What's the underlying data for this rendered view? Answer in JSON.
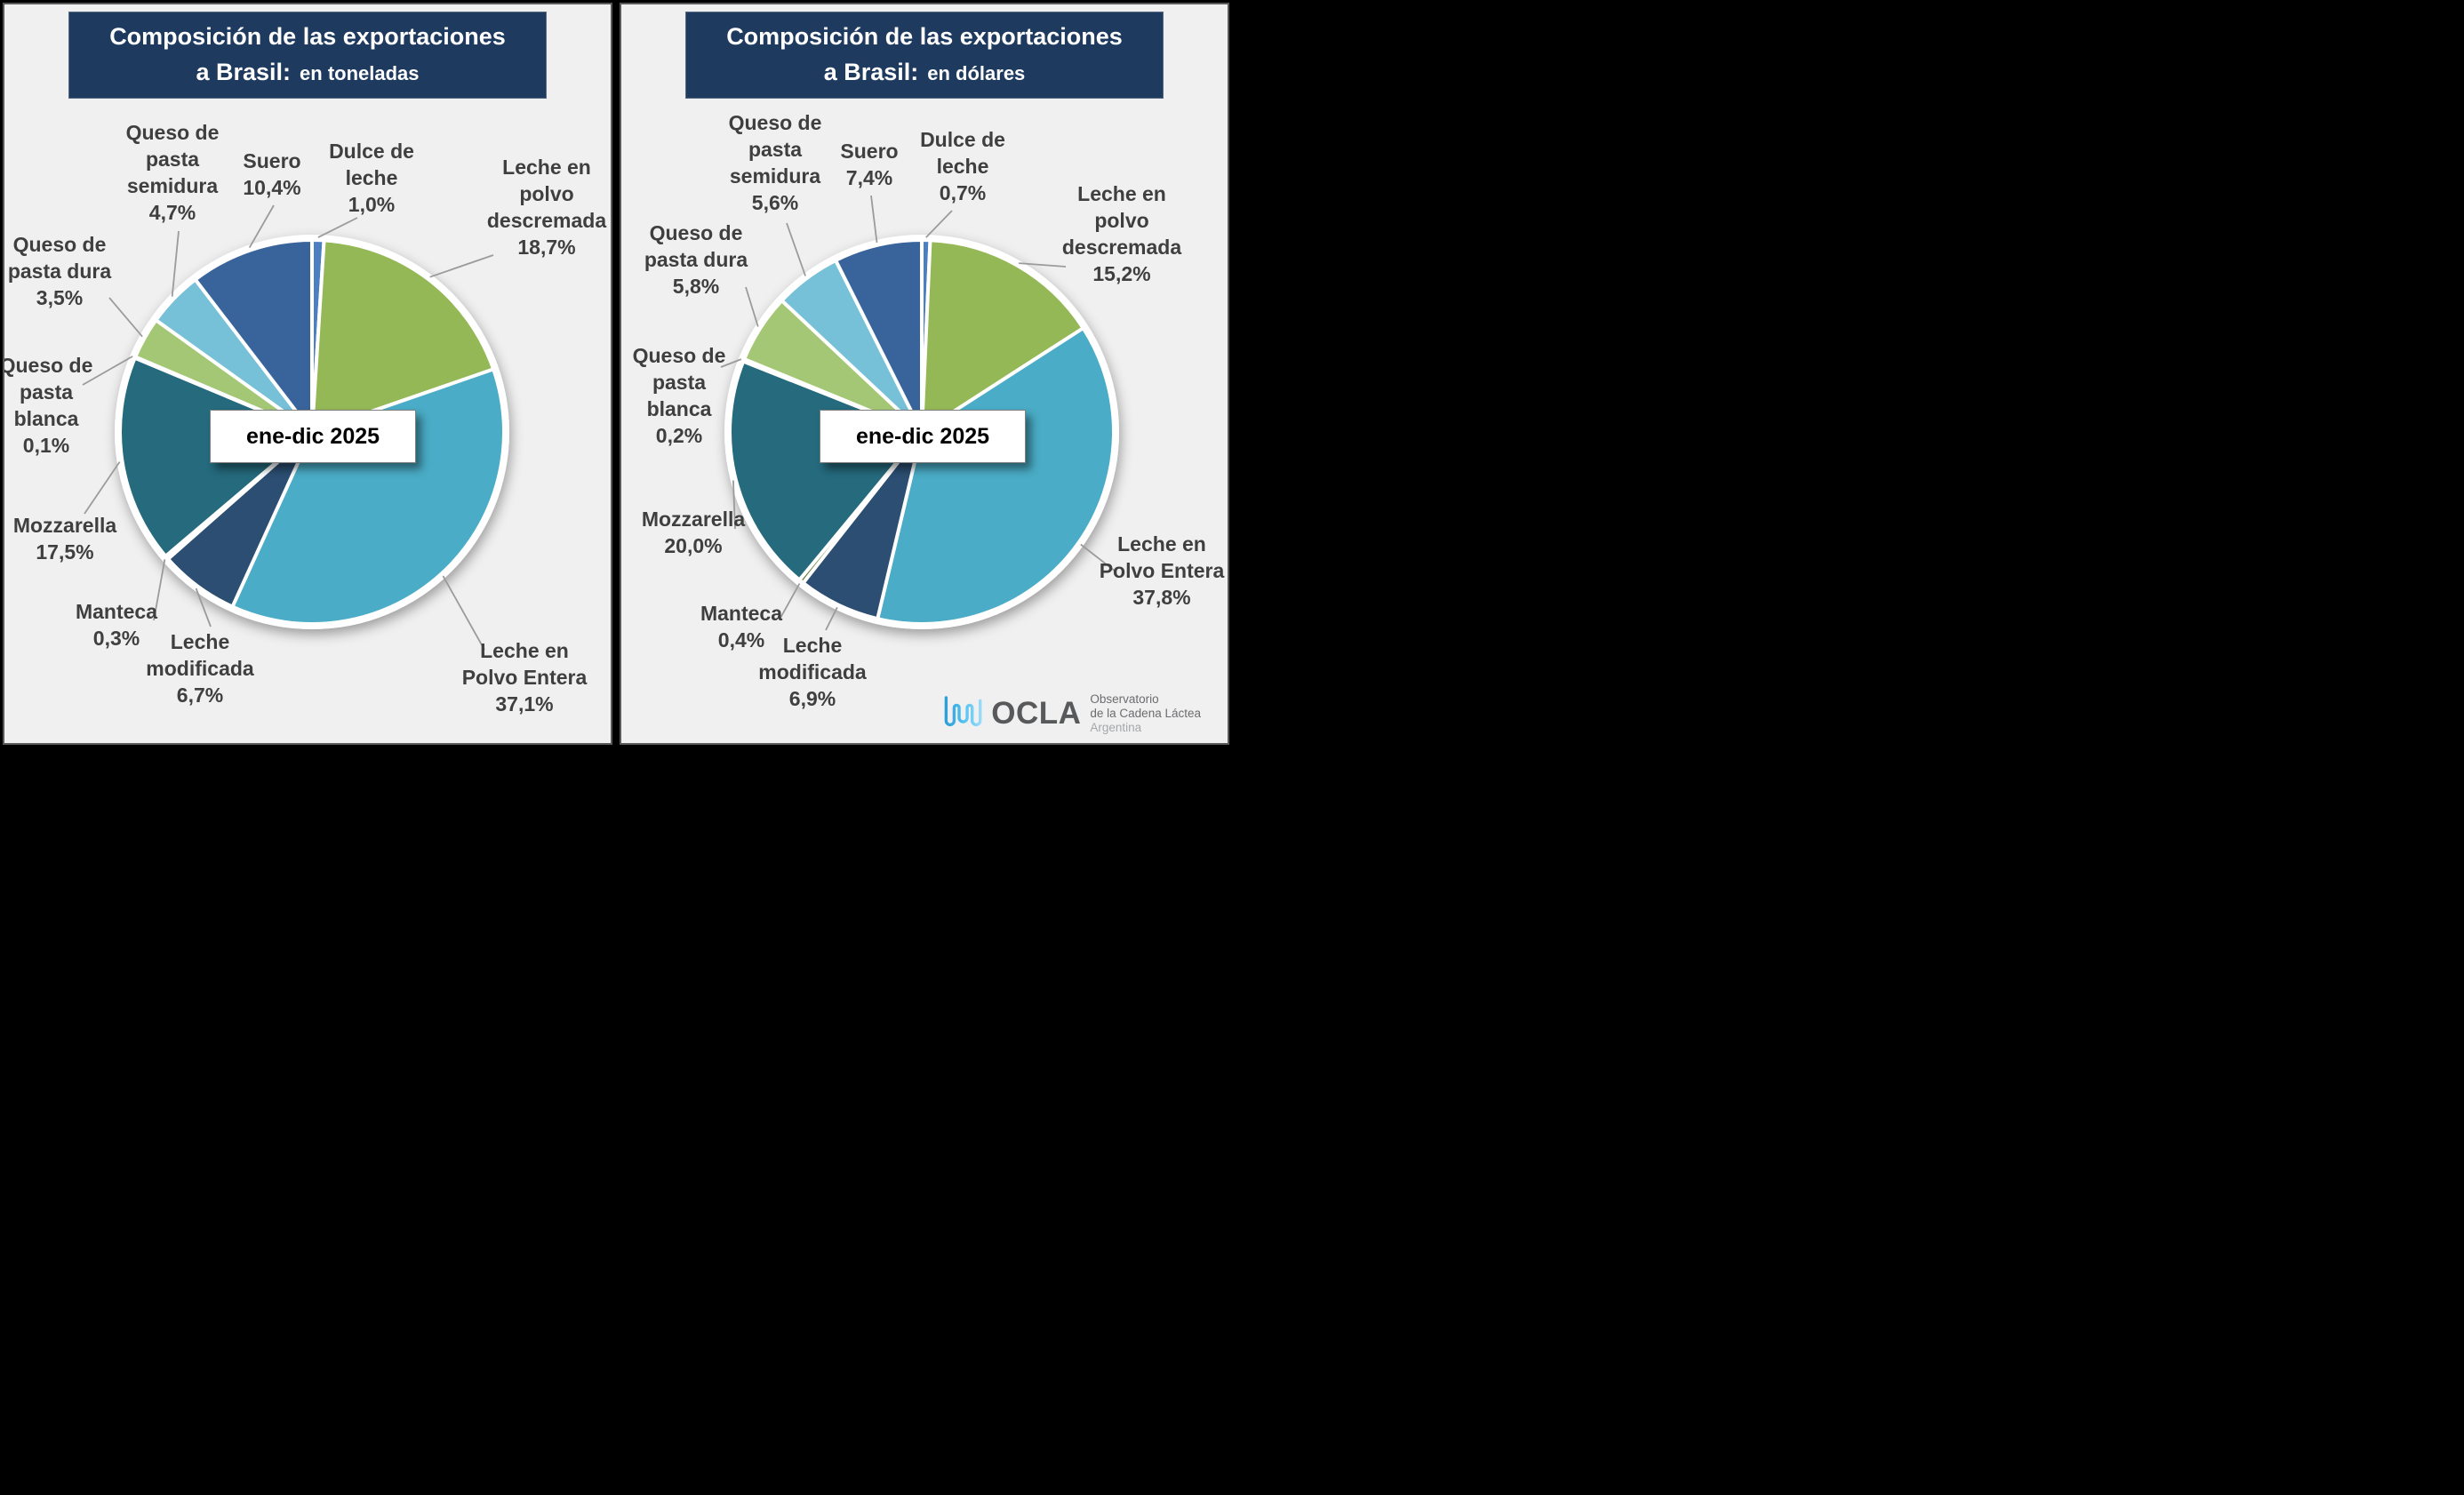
{
  "panels": [
    {
      "title_main": "Composición de las exportaciones",
      "title_prefix": "a Brasil:",
      "title_unit": "en toneladas",
      "center_label": "ene-dic 2025"
    },
    {
      "title_main": "Composición de las exportaciones",
      "title_prefix": "a Brasil:",
      "title_unit": "en dólares",
      "center_label": "ene-dic 2025"
    }
  ],
  "chart_data": [
    {
      "type": "pie",
      "title": "Composición de las exportaciones a Brasil: en toneladas",
      "period": "ene-dic 2025",
      "unit": "toneladas",
      "start_angle_deg": 0,
      "direction": "clockwise",
      "slices": [
        {
          "label": "Dulce de leche",
          "value": 1.0,
          "pct_label": "1,0%"
        },
        {
          "label": "Leche en polvo descremada",
          "value": 18.7,
          "pct_label": "18,7%"
        },
        {
          "label": "Leche en Polvo Entera",
          "value": 37.1,
          "pct_label": "37,1%"
        },
        {
          "label": "Leche modificada",
          "value": 6.7,
          "pct_label": "6,7%"
        },
        {
          "label": "Manteca",
          "value": 0.3,
          "pct_label": "0,3%"
        },
        {
          "label": "Mozzarella",
          "value": 17.5,
          "pct_label": "17,5%"
        },
        {
          "label": "Queso de pasta blanca",
          "value": 0.1,
          "pct_label": "0,1%"
        },
        {
          "label": "Queso de pasta dura",
          "value": 3.5,
          "pct_label": "3,5%"
        },
        {
          "label": "Queso de pasta semidura",
          "value": 4.7,
          "pct_label": "4,7%"
        },
        {
          "label": "Suero",
          "value": 10.4,
          "pct_label": "10,4%"
        }
      ],
      "colors": [
        "#4C7FC0",
        "#95B857",
        "#4AACC6",
        "#2C4E72",
        "#5E7A33",
        "#256A7D",
        "#9FB9C6",
        "#A4C775",
        "#76C0D8",
        "#39649B"
      ]
    },
    {
      "type": "pie",
      "title": "Composición de las exportaciones a Brasil: en dólares",
      "period": "ene-dic 2025",
      "unit": "dólares",
      "start_angle_deg": 0,
      "direction": "clockwise",
      "slices": [
        {
          "label": "Dulce de leche",
          "value": 0.7,
          "pct_label": "0,7%"
        },
        {
          "label": "Leche en polvo descremada",
          "value": 15.2,
          "pct_label": "15,2%"
        },
        {
          "label": "Leche en Polvo Entera",
          "value": 37.8,
          "pct_label": "37,8%"
        },
        {
          "label": "Leche modificada",
          "value": 6.9,
          "pct_label": "6,9%"
        },
        {
          "label": "Manteca",
          "value": 0.4,
          "pct_label": "0,4%"
        },
        {
          "label": "Mozzarella",
          "value": 20.0,
          "pct_label": "20,0%"
        },
        {
          "label": "Queso de pasta blanca",
          "value": 0.2,
          "pct_label": "0,2%"
        },
        {
          "label": "Queso de pasta dura",
          "value": 5.8,
          "pct_label": "5,8%"
        },
        {
          "label": "Queso de pasta semidura",
          "value": 5.6,
          "pct_label": "5,6%"
        },
        {
          "label": "Suero",
          "value": 7.4,
          "pct_label": "7,4%"
        }
      ],
      "colors": [
        "#4C7FC0",
        "#95B857",
        "#4AACC6",
        "#2C4E72",
        "#5E7A33",
        "#256A7D",
        "#9FB9C6",
        "#A4C775",
        "#76C0D8",
        "#39649B"
      ]
    }
  ],
  "logo": {
    "icon": "milk-wave-icon",
    "icon_colors": [
      "#2D9FD8",
      "#4FC0F0",
      "#97DBF9"
    ],
    "acronym": "OCLA",
    "name_line1": "Observatorio",
    "name_line2": "de la Cadena Láctea",
    "name_line3": "Argentina",
    "text_color": "#58595B"
  }
}
